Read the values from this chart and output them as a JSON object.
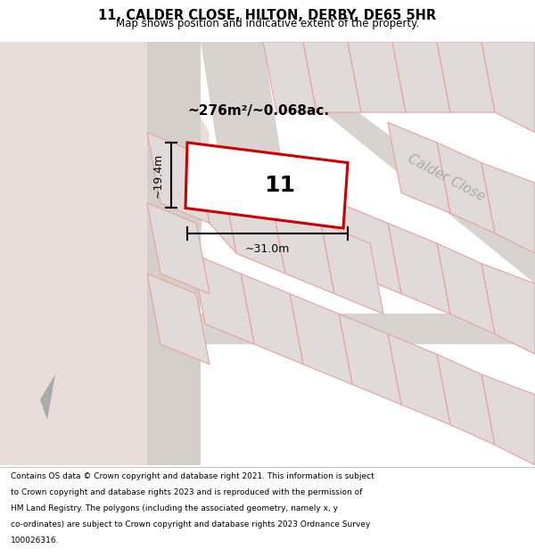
{
  "title_line1": "11, CALDER CLOSE, HILTON, DERBY, DE65 5HR",
  "title_line2": "Map shows position and indicative extent of the property.",
  "area_label": "~276m²/~0.068ac.",
  "width_label": "~31.0m",
  "height_label": "~19.4m",
  "plot_number": "11",
  "bg_light": "#ece5e0",
  "map_bg": "#eeebe8",
  "road_fill": "#d8d3ce",
  "plot_fill": "#ffffff",
  "plot_outline": "#cc0000",
  "block_fill": "#e0dbd8",
  "block_outline": "#e8a0a0",
  "calder_close_label": "Calder Close",
  "footer_lines": [
    "Contains OS data © Crown copyright and database right 2021. This information is subject",
    "to Crown copyright and database rights 2023 and is reproduced with the permission of",
    "HM Land Registry. The polygons (including the associated geometry, namely x, y",
    "co-ordinates) are subject to Crown copyright and database rights 2023 Ordnance Survey",
    "100026316."
  ]
}
